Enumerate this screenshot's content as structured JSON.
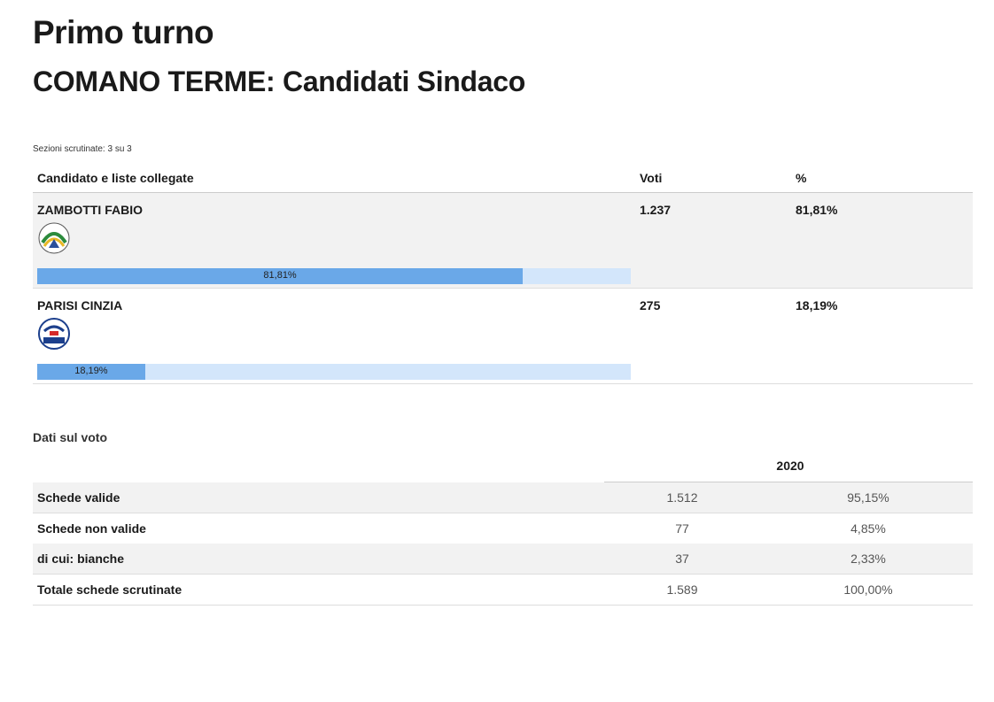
{
  "header": {
    "title": "Primo turno",
    "subtitle": "COMANO TERME: Candidati Sindaco"
  },
  "sections_note": "Sezioni scrutinate: 3 su 3",
  "candidates_table": {
    "columns": [
      "Candidato e liste collegate",
      "Voti",
      "%"
    ],
    "rows": [
      {
        "name": "ZAMBOTTI FABIO",
        "votes": "1.237",
        "percent": {
          "value": 81.81,
          "label": "81,81%"
        }
      },
      {
        "name": "PARISI CINZIA",
        "votes": "275",
        "percent": {
          "value": 18.19,
          "label": "18,19%"
        }
      }
    ]
  },
  "vote_data": {
    "title": "Dati sul voto",
    "year": "2020",
    "rows": [
      [
        "Schede valide",
        "1.512",
        "95,15%"
      ],
      [
        "Schede non valide",
        "77",
        "4,85%"
      ],
      [
        "di cui: bianche",
        "37",
        "2,33%"
      ],
      [
        "Totale schede scrutinate",
        "1.589",
        "100,00%"
      ]
    ]
  }
}
